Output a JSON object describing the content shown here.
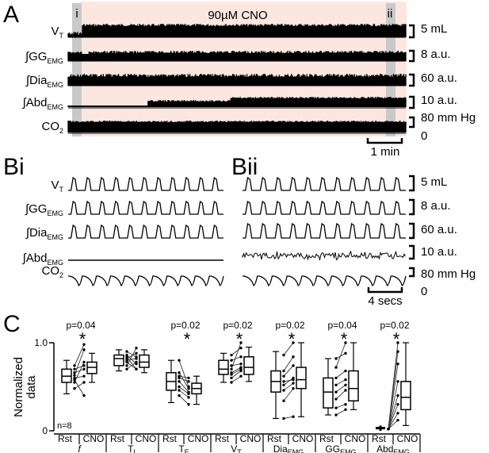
{
  "panelA": {
    "letter": "A",
    "condition": "90µM CNO",
    "marker_i": "i",
    "marker_ii": "ii",
    "traces": [
      {
        "main": "V",
        "sub": "T",
        "prefix": "",
        "scale": "5 mL"
      },
      {
        "main": "GG",
        "sub": "EMG",
        "prefix": "∫",
        "scale": "8 a.u."
      },
      {
        "main": "Dia",
        "sub": "EMG",
        "prefix": "∫",
        "scale": "60 a.u."
      },
      {
        "main": "Abd",
        "sub": "EMG",
        "prefix": "∫",
        "scale": "10 a.u."
      },
      {
        "main": "CO",
        "sub": "2",
        "prefix": "",
        "scale": "80 mm Hg"
      }
    ],
    "co2_zero": "0",
    "time_scale": "1 min"
  },
  "panelB": {
    "letter_i": "Bi",
    "letter_ii": "Bii",
    "traces": [
      {
        "main": "V",
        "sub": "T",
        "prefix": "",
        "scale": "5 mL"
      },
      {
        "main": "GG",
        "sub": "EMG",
        "prefix": "∫",
        "scale": "8 a.u."
      },
      {
        "main": "Dia",
        "sub": "EMG",
        "prefix": "∫",
        "scale": "60 a.u."
      },
      {
        "main": "Abd",
        "sub": "EMG",
        "prefix": "∫",
        "scale": "10 a.u."
      },
      {
        "main": "CO",
        "sub": "2",
        "prefix": "",
        "scale": "80 mm Hg"
      }
    ],
    "co2_zero": "0",
    "time_scale": "4 secs"
  },
  "panelC": {
    "letter": "C",
    "ylabel_line1": "Normalized",
    "ylabel_line2": "data",
    "ytick_top": "1.0",
    "ytick_bottom": "0",
    "n_label": "n=8",
    "rst_label": "Rst",
    "cno_label": "CNO",
    "sig_marker": "*",
    "groups": [
      {
        "main": "f",
        "sub": "",
        "p": "p=0.04",
        "sig": true
      },
      {
        "main": "T",
        "sub": "I",
        "p": "",
        "sig": false
      },
      {
        "main": "T",
        "sub": "E",
        "p": "p=0.02",
        "sig": true
      },
      {
        "main": "V",
        "sub": "T",
        "p": "p=0.02",
        "sig": true
      },
      {
        "main": "Dia",
        "sub": "EMG",
        "p": "p=0.02",
        "sig": true
      },
      {
        "main": "GG",
        "sub": "EMG",
        "p": "p=0.04",
        "sig": true
      },
      {
        "main": "Abd",
        "sub": "EMG",
        "p": "p=0.02",
        "sig": true
      }
    ]
  }
}
